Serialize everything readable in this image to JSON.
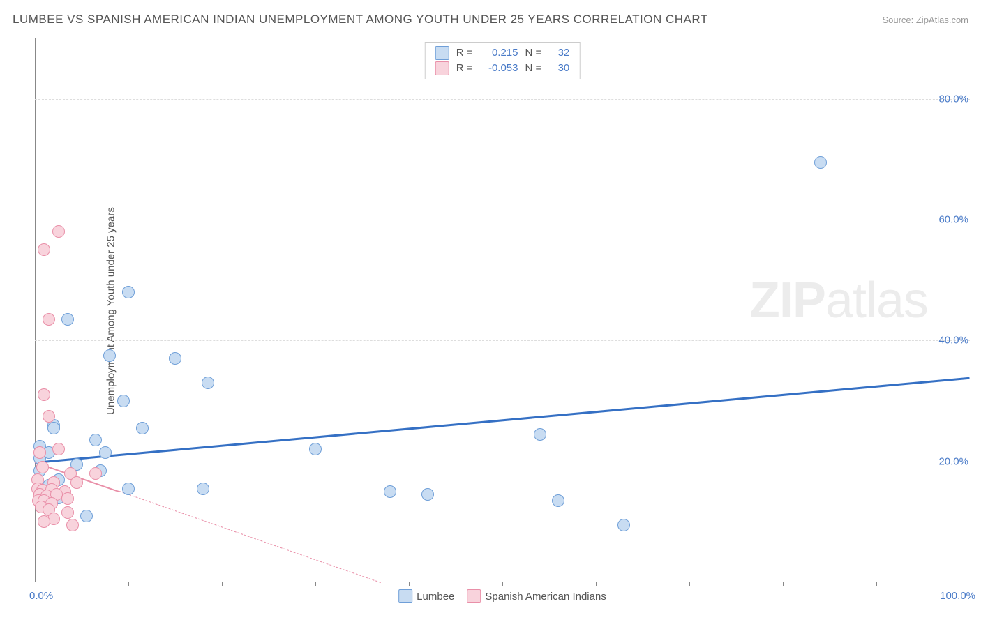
{
  "title": "LUMBEE VS SPANISH AMERICAN INDIAN UNEMPLOYMENT AMONG YOUTH UNDER 25 YEARS CORRELATION CHART",
  "source": "Source: ZipAtlas.com",
  "y_axis_label": "Unemployment Among Youth under 25 years",
  "watermark_bold": "ZIP",
  "watermark_rest": "atlas",
  "chart": {
    "type": "scatter",
    "xlim": [
      0,
      100
    ],
    "ylim": [
      0,
      90
    ],
    "y_ticks": [
      20,
      40,
      60,
      80
    ],
    "y_tick_labels": [
      "20.0%",
      "40.0%",
      "60.0%",
      "80.0%"
    ],
    "x_ticks": [
      10,
      20,
      30,
      40,
      50,
      60,
      70,
      80,
      90
    ],
    "x_start_label": "0.0%",
    "x_end_label": "100.0%",
    "background_color": "#ffffff",
    "grid_color": "#dddddd",
    "marker_radius": 9,
    "marker_border_width": 1.5
  },
  "series": [
    {
      "name": "Lumbee",
      "fill": "#c8dcf2",
      "stroke": "#6f9fd8",
      "trend": {
        "x1": 0,
        "y1": 20.0,
        "x2": 100,
        "y2": 34.0,
        "width": 3,
        "color": "#3570c4",
        "dashed": false
      },
      "corr_R": "0.215",
      "corr_N": "32",
      "points": [
        [
          84,
          69.5
        ],
        [
          10,
          48.0
        ],
        [
          3.5,
          43.5
        ],
        [
          8,
          37.5
        ],
        [
          15,
          37.0
        ],
        [
          18.5,
          33.0
        ],
        [
          9.5,
          30.0
        ],
        [
          11.5,
          25.5
        ],
        [
          2,
          26.0
        ],
        [
          2,
          25.5
        ],
        [
          0.5,
          22.5
        ],
        [
          6.5,
          23.5
        ],
        [
          7.5,
          21.5
        ],
        [
          54,
          24.5
        ],
        [
          30,
          22.0
        ],
        [
          0.5,
          20.5
        ],
        [
          4.5,
          19.5
        ],
        [
          0.5,
          18.5
        ],
        [
          7,
          18.5
        ],
        [
          2.5,
          17.0
        ],
        [
          1.5,
          16.0
        ],
        [
          10,
          15.5
        ],
        [
          18,
          15.5
        ],
        [
          38,
          15.0
        ],
        [
          42,
          14.5
        ],
        [
          56,
          13.5
        ],
        [
          5.5,
          11.0
        ],
        [
          1.5,
          13.5
        ],
        [
          2.5,
          14.0
        ],
        [
          63,
          9.5
        ],
        [
          0.5,
          15.0
        ],
        [
          1.5,
          21.5
        ]
      ]
    },
    {
      "name": "Spanish American Indians",
      "fill": "#f8d3dc",
      "stroke": "#e98fa8",
      "trend": {
        "x1": 0,
        "y1": 20.0,
        "x2": 37,
        "y2": 0.0,
        "width": 2,
        "color": "#e98fa8",
        "dashed": true
      },
      "trend_solid_end_x": 9,
      "corr_R": "-0.053",
      "corr_N": "30",
      "points": [
        [
          2.5,
          58.0
        ],
        [
          1.0,
          55.0
        ],
        [
          1.5,
          43.5
        ],
        [
          1.0,
          31.0
        ],
        [
          1.5,
          27.5
        ],
        [
          2.5,
          22.0
        ],
        [
          0.5,
          21.5
        ],
        [
          0.8,
          19.0
        ],
        [
          3.8,
          18.0
        ],
        [
          6.5,
          18.0
        ],
        [
          0.3,
          17.0
        ],
        [
          2.0,
          16.5
        ],
        [
          4.5,
          16.5
        ],
        [
          0.3,
          15.5
        ],
        [
          0.8,
          15.2
        ],
        [
          1.8,
          15.3
        ],
        [
          3.2,
          15.0
        ],
        [
          0.5,
          14.5
        ],
        [
          1.3,
          14.3
        ],
        [
          2.3,
          14.5
        ],
        [
          3.5,
          13.8
        ],
        [
          0.4,
          13.5
        ],
        [
          1.0,
          13.5
        ],
        [
          1.8,
          13.0
        ],
        [
          0.7,
          12.5
        ],
        [
          1.5,
          12.0
        ],
        [
          3.5,
          11.5
        ],
        [
          2.0,
          10.5
        ],
        [
          4.0,
          9.5
        ],
        [
          1.0,
          10.0
        ]
      ]
    }
  ],
  "legend_top": {
    "R_label": "R =",
    "N_label": "N ="
  },
  "legend_bottom_labels": [
    "Lumbee",
    "Spanish American Indians"
  ]
}
